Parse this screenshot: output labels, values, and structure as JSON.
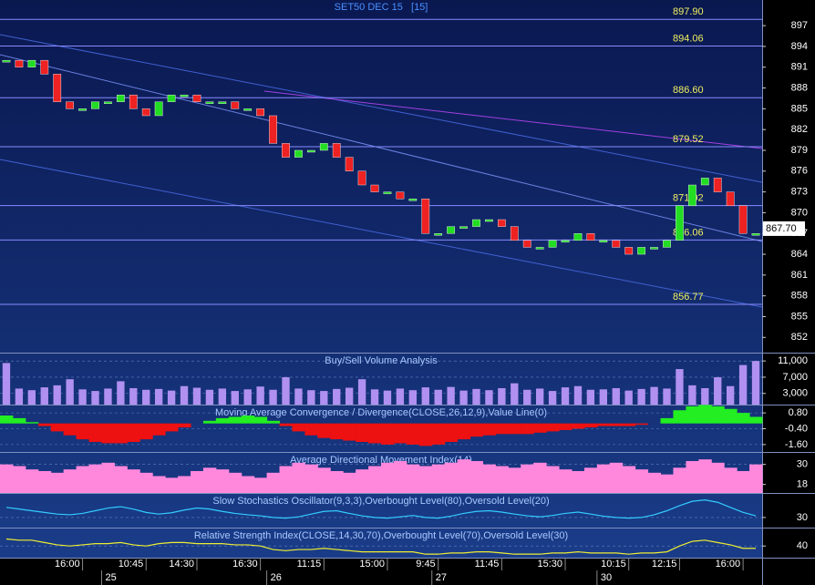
{
  "title": "SET50 DEC 15   [15]",
  "chart_data": [
    {
      "type": "candle",
      "values": [
        892,
        891,
        892,
        890,
        886,
        885,
        885,
        886,
        886,
        887,
        885,
        884,
        886,
        887,
        887,
        886,
        886,
        886,
        885,
        885,
        884,
        880,
        878,
        879,
        879,
        880,
        878,
        876,
        874,
        873,
        873,
        872,
        872,
        867,
        867,
        868,
        868,
        869,
        869,
        868,
        866,
        865,
        865,
        866,
        866,
        867,
        866,
        866,
        865,
        864,
        865,
        865,
        866,
        871,
        874,
        875,
        873,
        871,
        867,
        867
      ],
      "ylim": [
        849.8,
        900.7
      ],
      "yticks": [
        897,
        894,
        891,
        888,
        885,
        882,
        879,
        876,
        873,
        870,
        867,
        864,
        861,
        858,
        855,
        852
      ],
      "levels": [
        {
          "value": 897.9,
          "label": "897.90"
        },
        {
          "value": 894.06,
          "label": "894.06"
        },
        {
          "value": 886.6,
          "label": "886.60"
        },
        {
          "value": 879.52,
          "label": "879.52"
        },
        {
          "value": 871.02,
          "label": "871.02"
        },
        {
          "value": 866.06,
          "label": "866.06"
        },
        {
          "value": 856.77,
          "label": "856.77"
        }
      ],
      "last": {
        "value": 867.7,
        "label": "867.70"
      }
    },
    {
      "type": "bar",
      "title": "Buy/Sell Volume Analysis",
      "color": "#b090f0",
      "values": [
        10500,
        4200,
        3800,
        4500,
        5000,
        6500,
        4000,
        3600,
        4200,
        6000,
        4300,
        3900,
        4100,
        3700,
        4800,
        4400,
        3900,
        4200,
        3600,
        4000,
        4700,
        3900,
        7000,
        4200,
        3800,
        3600,
        4100,
        4400,
        6500,
        4000,
        3700,
        4200,
        3800,
        4500,
        3900,
        4600,
        3700,
        4100,
        3800,
        4300,
        5500,
        3900,
        4200,
        3600,
        4500,
        4800,
        3900,
        4000,
        4300,
        3700,
        4100,
        4600,
        4200,
        9000,
        5000,
        4300,
        7000,
        4800,
        10000,
        11000
      ],
      "ylim": [
        250,
        12830
      ],
      "yticks": [
        {
          "value": 11000,
          "label": "11,000"
        },
        {
          "value": 7000,
          "label": "7,000"
        },
        {
          "value": 3000,
          "label": "3,000"
        }
      ]
    },
    {
      "type": "area",
      "title": "Moving Average Convergence / Divergence(CLOSE,26,12,9),Value Line(0)",
      "color": "#22ee22",
      "negative_color": "#ee1111",
      "values": [
        0.6,
        0.4,
        0.1,
        -0.2,
        -0.6,
        -0.9,
        -1.2,
        -1.4,
        -1.5,
        -1.5,
        -1.4,
        -1.2,
        -0.9,
        -0.6,
        -0.3,
        0.0,
        0.2,
        0.4,
        0.5,
        0.6,
        0.5,
        0.2,
        -0.2,
        -0.6,
        -0.9,
        -1.1,
        -1.2,
        -1.3,
        -1.4,
        -1.5,
        -1.6,
        -1.5,
        -1.6,
        -1.7,
        -1.6,
        -1.4,
        -1.2,
        -1.0,
        -0.9,
        -0.8,
        -0.8,
        -0.8,
        -0.7,
        -0.6,
        -0.5,
        -0.4,
        -0.3,
        -0.2,
        -0.2,
        -0.2,
        -0.1,
        0.0,
        0.4,
        1.0,
        1.3,
        1.4,
        1.3,
        1.1,
        0.8,
        0.5
      ],
      "ylim": [
        -2.16,
        1.36
      ],
      "yticks": [
        {
          "value": 0.8,
          "label": "0.80"
        },
        {
          "value": -0.4,
          "label": "-0.40"
        },
        {
          "value": -1.6,
          "label": "-1.60"
        }
      ]
    },
    {
      "type": "area",
      "title": "Average Directional Movement Index(14)",
      "color": "#ff88dd",
      "values": [
        30,
        29,
        27,
        26,
        25,
        27,
        29,
        30,
        31,
        29,
        27,
        25,
        23,
        22,
        23,
        26,
        28,
        27,
        25,
        23,
        22,
        25,
        29,
        31,
        30,
        28,
        26,
        25,
        27,
        29,
        31,
        32,
        30,
        29,
        30,
        31,
        33,
        32,
        30,
        29,
        28,
        30,
        31,
        29,
        27,
        26,
        28,
        30,
        31,
        29,
        27,
        25,
        24,
        28,
        32,
        33,
        31,
        28,
        26,
        30
      ],
      "ylim": [
        12.9,
        36.9
      ],
      "yticks": [
        30,
        18
      ]
    },
    {
      "type": "line",
      "title": "Slow Stochastics Oscillator(9,3,3),Overbought Level(80),Oversold Level(20)",
      "color": "#33ccff",
      "values": [
        60,
        55,
        50,
        45,
        40,
        38,
        42,
        50,
        58,
        62,
        55,
        45,
        40,
        44,
        52,
        58,
        55,
        48,
        42,
        38,
        35,
        30,
        28,
        32,
        40,
        48,
        50,
        42,
        35,
        30,
        28,
        32,
        36,
        30,
        28,
        34,
        42,
        48,
        50,
        46,
        40,
        35,
        32,
        36,
        42,
        46,
        40,
        34,
        30,
        28,
        30,
        38,
        50,
        65,
        78,
        82,
        75,
        60,
        45,
        35
      ],
      "ylim": [
        0,
        100
      ],
      "yticks": [
        30
      ]
    },
    {
      "type": "line",
      "title": "Relative Strength Index(CLOSE,14,30,70),Overbought Level(70),Oversold Level(30)",
      "color": "#eeee33",
      "values": [
        46,
        45,
        45,
        43,
        41,
        40,
        41,
        42,
        42,
        43,
        41,
        40,
        42,
        43,
        43,
        42,
        42,
        42,
        41,
        41,
        40,
        37,
        36,
        37,
        37,
        38,
        37,
        36,
        35,
        35,
        35,
        35,
        35,
        33,
        33,
        34,
        34,
        35,
        35,
        34,
        33,
        33,
        33,
        34,
        34,
        35,
        34,
        34,
        34,
        33,
        34,
        34,
        35,
        40,
        44,
        45,
        43,
        41,
        38,
        38
      ],
      "ylim": [
        30,
        55
      ],
      "yticks": [
        40
      ],
      "categories": [
        null,
        null,
        null,
        null,
        null,
        null,
        "16:00",
        null,
        null,
        null,
        null,
        "10:45",
        null,
        null,
        null,
        "14:30",
        null,
        null,
        null,
        null,
        "16:30",
        null,
        null,
        null,
        null,
        "11:15",
        null,
        null,
        null,
        null,
        "15:00",
        null,
        null,
        null,
        "9:45",
        null,
        null,
        null,
        null,
        "11:45",
        null,
        null,
        null,
        null,
        "15:30",
        null,
        null,
        null,
        null,
        "10:15",
        null,
        null,
        null,
        "12:15",
        null,
        null,
        null,
        null,
        "16:00",
        null
      ],
      "dates": [
        null,
        null,
        null,
        null,
        null,
        null,
        null,
        null,
        "25",
        null,
        null,
        null,
        null,
        null,
        null,
        null,
        null,
        null,
        null,
        null,
        null,
        "26",
        null,
        null,
        null,
        null,
        null,
        null,
        null,
        null,
        null,
        null,
        null,
        null,
        "27",
        null,
        null,
        null,
        null,
        null,
        null,
        null,
        null,
        null,
        null,
        null,
        null,
        "30",
        null,
        null,
        null,
        null,
        null,
        null,
        null,
        null,
        null,
        null,
        null,
        null
      ]
    }
  ]
}
